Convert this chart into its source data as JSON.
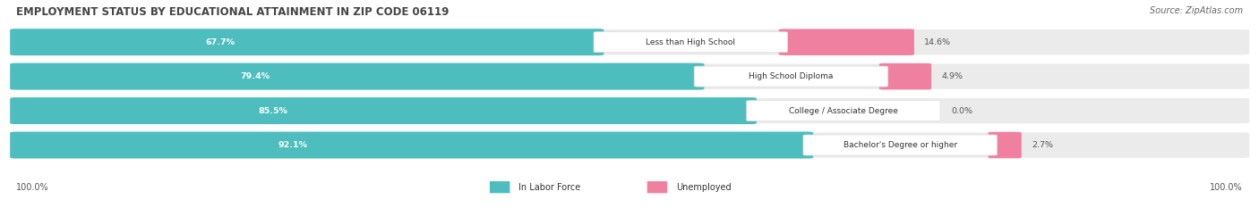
{
  "title": "EMPLOYMENT STATUS BY EDUCATIONAL ATTAINMENT IN ZIP CODE 06119",
  "source": "Source: ZipAtlas.com",
  "categories": [
    "Less than High School",
    "High School Diploma",
    "College / Associate Degree",
    "Bachelor's Degree or higher"
  ],
  "in_labor_force": [
    67.7,
    79.4,
    85.5,
    92.1
  ],
  "unemployed": [
    14.6,
    4.9,
    0.0,
    2.7
  ],
  "teal": "#4dbdbd",
  "pink": "#f080a0",
  "bar_bg": "#ebebeb",
  "title_fontsize": 8.5,
  "source_fontsize": 7.0,
  "value_fontsize": 6.8,
  "cat_fontsize": 6.5,
  "legend_fontsize": 7.0,
  "tick_fontsize": 7.0,
  "axis_label_left": "100.0%",
  "axis_label_right": "100.0%",
  "figsize": [
    14.06,
    2.33
  ],
  "dpi": 100
}
